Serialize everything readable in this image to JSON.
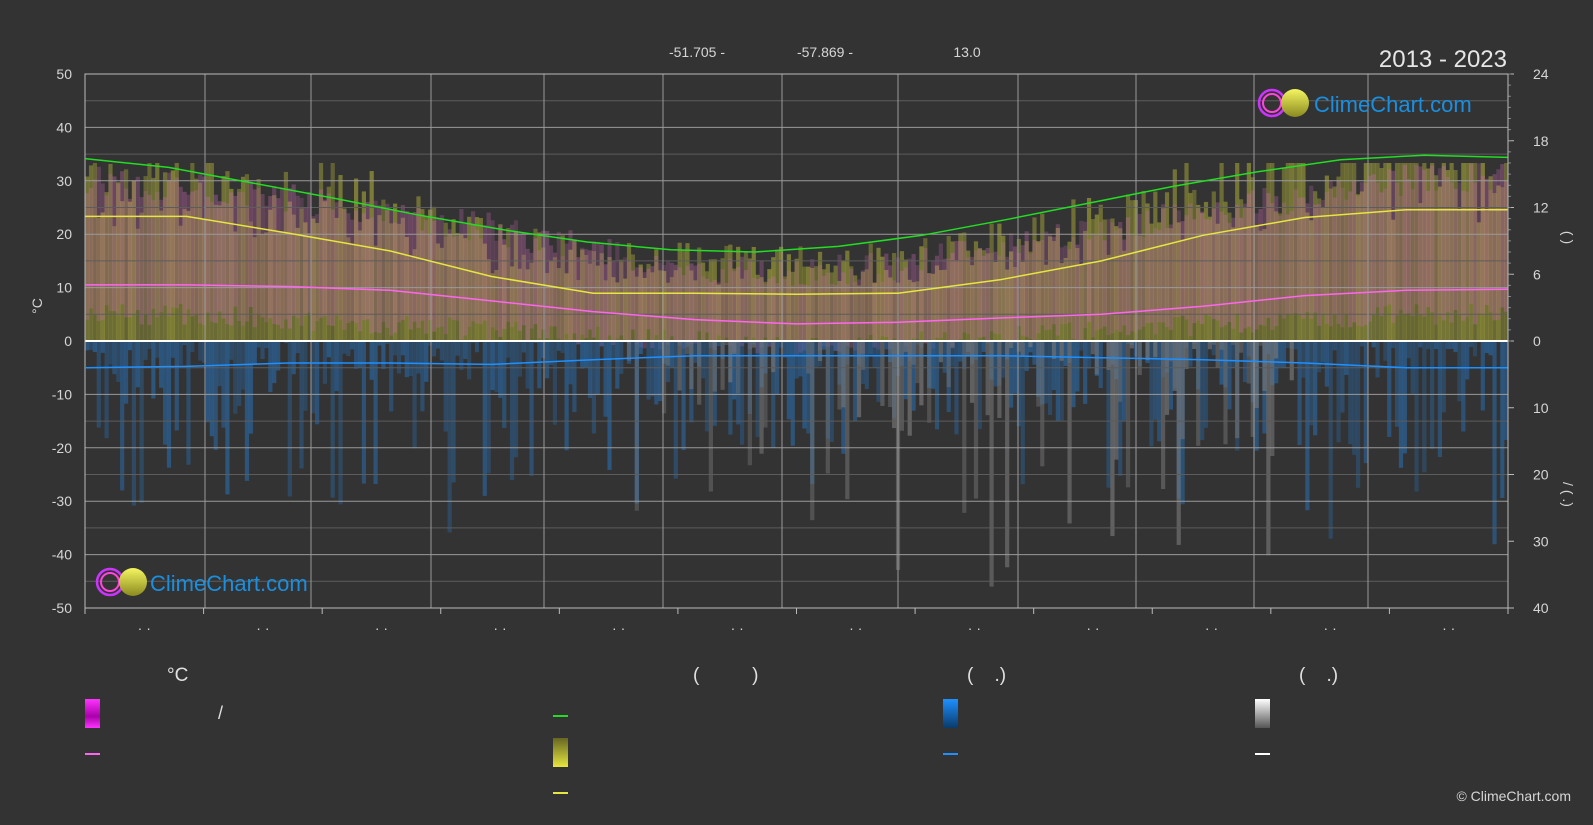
{
  "header": {
    "coords": [
      "-51.705 -",
      "-57.869 -",
      "13.0"
    ],
    "period": "2013 - 2023"
  },
  "logo": {
    "text": "ClimeChart.com"
  },
  "copyright": "© ClimeChart.com",
  "colors": {
    "background": "#333333",
    "daylight": "#22dd22",
    "sunshine": "#e6e640",
    "temp_mean": "#ff66ee",
    "precip_mean": "#1e90ff",
    "snow_mean": "#ffffff",
    "logo_blue": "#1a8fe0"
  },
  "legend": {
    "col1": {
      "header": "°C",
      "row1": "/",
      "swatch1": "temp-range-gradient",
      "swatch2": "temp-mean-line"
    },
    "col2": {
      "header": "(          )",
      "swatch1": "daylight-line",
      "swatch2": "sunshine-gradient",
      "swatch3": "sunshine-line"
    },
    "col3": {
      "header": "(    .)",
      "swatch1": "precip-gradient",
      "swatch2": "precip-line"
    },
    "col4": {
      "header": "(    .)",
      "swatch1": "snow-gradient",
      "swatch2": "snow-line"
    }
  },
  "chart_data": {
    "type": "line",
    "title": "2013 - 2023",
    "ylabel": "°C",
    "ylim": [
      -50,
      50
    ],
    "y_ticks": [
      "50",
      "40",
      "30",
      "20",
      "10",
      "0",
      "-10",
      "-20",
      "-30",
      "-40",
      "-50"
    ],
    "right_axis_upper": {
      "ticks": [
        "24",
        "18",
        "12",
        "6",
        "0"
      ],
      "ylim": [
        0,
        24
      ],
      "label": "(     )"
    },
    "right_axis_lower": {
      "ticks": [
        "0",
        "10",
        "20",
        "30",
        "40"
      ],
      "ylim": [
        0,
        40
      ],
      "label": "/  (   .)"
    },
    "x_tick_labels": [
      "· ·",
      "· ·",
      "· ·",
      "· ·",
      "· ·",
      "· ·",
      "· ·",
      "· ·",
      "· ·",
      "· ·",
      "· ·",
      "· ·"
    ],
    "months": 12,
    "grid": true,
    "series": [
      {
        "key": "daylight",
        "axis": "right_upper",
        "values": [
          16.4,
          15.6,
          14.2,
          12.8,
          11.3,
          10.0,
          8.9,
          8.2,
          8.0,
          8.5,
          9.5,
          10.9,
          12.4,
          13.9,
          15.2,
          16.3,
          16.7,
          16.5
        ]
      },
      {
        "key": "sunshine",
        "axis": "right_upper",
        "values": [
          11.2,
          11.2,
          9.7,
          8.1,
          5.8,
          4.3,
          4.3,
          4.2,
          4.3,
          5.5,
          7.2,
          9.5,
          11.1,
          11.8,
          11.8
        ]
      },
      {
        "key": "temp_mean",
        "axis": "left",
        "values": [
          10.5,
          10.5,
          10.2,
          9.5,
          7.5,
          5.5,
          4.0,
          3.2,
          3.5,
          4.3,
          5.0,
          6.5,
          8.5,
          9.5,
          9.7
        ]
      },
      {
        "key": "precip_mean",
        "axis": "right_lower",
        "values": [
          4.0,
          3.8,
          3.3,
          3.3,
          3.5,
          2.8,
          2.2,
          2.2,
          2.2,
          2.2,
          2.5,
          2.8,
          3.3,
          4.0,
          4.0
        ]
      },
      {
        "key": "temp_max_band",
        "axis": "left",
        "values": [
          30,
          29,
          27,
          24,
          21,
          17,
          14,
          13,
          14,
          17,
          21,
          24,
          27,
          30,
          31
        ]
      },
      {
        "key": "temp_min_band",
        "axis": "left",
        "values": [
          5,
          5,
          4,
          3,
          2,
          1,
          0,
          -1,
          0,
          1,
          2,
          3,
          4,
          5,
          5
        ]
      }
    ]
  }
}
